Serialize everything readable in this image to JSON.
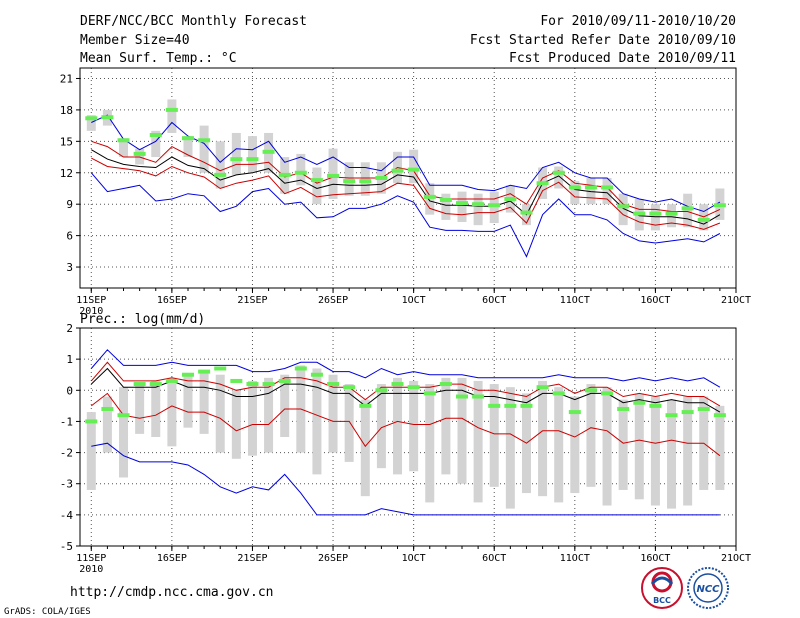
{
  "header": {
    "left": [
      "DERF/NCC/BCC Monthly Forecast",
      "Member Size=40",
      "Mean Surf. Temp.: °C"
    ],
    "right": [
      "For 2010/09/11-2010/10/20",
      "Fcst Started Refer Date 2010/09/10",
      "Fcst Produced Date 2010/09/11"
    ]
  },
  "chart_data": [
    {
      "type": "line",
      "title": "Mean Surf. Temp.: °C",
      "xlabel": "",
      "ylabel": "Mean Surf. Temp. (°C)",
      "ylim": [
        1,
        22
      ],
      "yticks": [
        3,
        6,
        9,
        12,
        15,
        18,
        21
      ],
      "x": [
        1,
        2,
        3,
        4,
        5,
        6,
        7,
        8,
        9,
        10,
        11,
        12,
        13,
        14,
        15,
        16,
        17,
        18,
        19,
        20,
        21,
        22,
        23,
        24,
        25,
        26,
        27,
        28,
        29,
        30,
        31,
        32,
        33,
        34,
        35,
        36,
        37,
        38,
        39,
        40
      ],
      "xticks": [
        {
          "x": 1,
          "label": "11SEP"
        },
        {
          "x": 6,
          "label": "16SEP"
        },
        {
          "x": 11,
          "label": "21SEP"
        },
        {
          "x": 16,
          "label": "26SEP"
        },
        {
          "x": 21,
          "label": "1OCT"
        },
        {
          "x": 26,
          "label": "6OCT"
        },
        {
          "x": 31,
          "label": "11OCT"
        },
        {
          "x": 36,
          "label": "16OCT"
        },
        {
          "x": 41,
          "label": "21OCT"
        }
      ],
      "xtick_sub": "2010",
      "grid": true,
      "series": [
        {
          "name": "max",
          "color": "#0000dd",
          "values": [
            16.8,
            17.5,
            15.2,
            14.2,
            15.0,
            16.8,
            15.5,
            14.8,
            13.0,
            14.3,
            14.2,
            15.0,
            13.0,
            13.5,
            12.8,
            13.5,
            12.5,
            12.5,
            12.2,
            13.5,
            13.5,
            10.8,
            10.8,
            10.8,
            10.4,
            10.3,
            10.8,
            10.5,
            12.5,
            13.0,
            12.0,
            11.5,
            11.5,
            10.0,
            9.5,
            9.2,
            9.5,
            8.8,
            8.3,
            9.2
          ]
        },
        {
          "name": "upper",
          "color": "#cc0000",
          "values": [
            15.0,
            14.5,
            13.5,
            13.5,
            13.0,
            14.5,
            13.7,
            13.0,
            12.2,
            12.8,
            12.8,
            13.0,
            11.6,
            12.0,
            11.0,
            11.6,
            11.5,
            11.5,
            11.5,
            12.5,
            12.2,
            9.8,
            9.5,
            9.5,
            9.5,
            9.5,
            10.0,
            9.0,
            11.5,
            12.2,
            11.0,
            10.8,
            10.6,
            9.0,
            8.5,
            8.5,
            8.3,
            8.3,
            7.8,
            8.5
          ]
        },
        {
          "name": "mean",
          "color": "#000000",
          "values": [
            14.2,
            13.3,
            12.8,
            12.6,
            12.5,
            13.5,
            12.7,
            12.4,
            11.3,
            11.8,
            12.0,
            12.4,
            11.0,
            11.3,
            10.5,
            10.9,
            10.8,
            10.8,
            10.9,
            11.8,
            11.6,
            9.3,
            8.9,
            8.9,
            8.8,
            8.8,
            9.3,
            8.0,
            11.0,
            11.7,
            10.4,
            10.2,
            10.1,
            8.6,
            7.9,
            7.8,
            7.8,
            7.6,
            7.1,
            8.0
          ]
        },
        {
          "name": "lower",
          "color": "#cc0000",
          "values": [
            13.4,
            12.6,
            12.4,
            12.2,
            11.7,
            12.6,
            12.0,
            11.6,
            10.5,
            11.0,
            11.3,
            11.7,
            10.0,
            10.6,
            9.7,
            9.9,
            10.0,
            10.1,
            10.2,
            11.0,
            10.8,
            8.6,
            8.1,
            8.0,
            8.2,
            8.2,
            8.7,
            7.2,
            10.3,
            11.1,
            9.7,
            9.6,
            9.5,
            8.0,
            7.3,
            7.0,
            7.2,
            7.0,
            6.6,
            7.2
          ]
        },
        {
          "name": "min",
          "color": "#0000dd",
          "values": [
            12.0,
            10.2,
            10.5,
            10.8,
            9.3,
            9.5,
            10.0,
            9.8,
            8.3,
            8.8,
            10.2,
            10.5,
            9.0,
            9.2,
            7.7,
            7.8,
            8.6,
            8.6,
            9.0,
            9.8,
            9.2,
            6.8,
            6.5,
            6.5,
            6.4,
            6.4,
            7.0,
            4.0,
            8.0,
            9.5,
            8.0,
            8.0,
            7.5,
            6.2,
            5.5,
            5.3,
            5.5,
            5.7,
            5.4,
            6.2
          ]
        }
      ],
      "boxes": {
        "color": "#d3d3d3",
        "low": [
          16.0,
          16.5,
          13.5,
          12.8,
          13.5,
          15.8,
          13.5,
          12.0,
          10.5,
          11.8,
          12.0,
          12.0,
          10.0,
          10.8,
          9.0,
          9.5,
          9.8,
          9.8,
          10.0,
          11.0,
          11.0,
          8.0,
          7.5,
          7.3,
          7.0,
          7.2,
          8.2,
          7.0,
          9.5,
          10.5,
          9.0,
          9.0,
          9.0,
          7.0,
          6.5,
          6.5,
          6.8,
          6.8,
          6.5,
          7.5
        ],
        "high": [
          17.5,
          18.0,
          15.3,
          14.3,
          16.0,
          19.0,
          15.5,
          16.5,
          15.0,
          15.8,
          15.5,
          15.8,
          13.5,
          13.8,
          12.5,
          14.3,
          13.0,
          13.0,
          13.0,
          14.0,
          14.2,
          11.0,
          10.0,
          10.2,
          10.0,
          10.2,
          10.8,
          9.0,
          12.5,
          12.6,
          11.2,
          11.5,
          11.5,
          10.0,
          9.5,
          9.0,
          9.0,
          10.0,
          9.0,
          10.5
        ]
      },
      "observed": {
        "color": "#66ee55",
        "values": [
          17.2,
          17.3,
          15.1,
          13.8,
          15.6,
          18.0,
          15.3,
          15.1,
          11.8,
          13.3,
          13.3,
          14.0,
          11.8,
          12.0,
          11.3,
          11.7,
          11.2,
          11.2,
          11.5,
          12.2,
          12.3,
          9.7,
          9.4,
          9.1,
          9.0,
          8.9,
          9.5,
          8.2,
          11.0,
          12.0,
          10.6,
          10.6,
          10.6,
          8.8,
          8.1,
          8.1,
          8.1,
          8.6,
          7.5,
          8.9
        ]
      }
    },
    {
      "type": "line",
      "title": "Prec.: log(mm/d)",
      "xlabel": "",
      "ylabel": "Prec. log(mm/d)",
      "ylim": [
        -5,
        2
      ],
      "yticks": [
        -5,
        -4,
        -3,
        -2,
        -1,
        0,
        1,
        2
      ],
      "x": [
        1,
        2,
        3,
        4,
        5,
        6,
        7,
        8,
        9,
        10,
        11,
        12,
        13,
        14,
        15,
        16,
        17,
        18,
        19,
        20,
        21,
        22,
        23,
        24,
        25,
        26,
        27,
        28,
        29,
        30,
        31,
        32,
        33,
        34,
        35,
        36,
        37,
        38,
        39,
        40
      ],
      "xticks": [
        {
          "x": 1,
          "label": "11SEP"
        },
        {
          "x": 6,
          "label": "16SEP"
        },
        {
          "x": 11,
          "label": "21SEP"
        },
        {
          "x": 16,
          "label": "26SEP"
        },
        {
          "x": 21,
          "label": "1OCT"
        },
        {
          "x": 26,
          "label": "6OCT"
        },
        {
          "x": 31,
          "label": "11OCT"
        },
        {
          "x": 36,
          "label": "16OCT"
        },
        {
          "x": 41,
          "label": "21OCT"
        }
      ],
      "xtick_sub": "2010",
      "grid": true,
      "series": [
        {
          "name": "max",
          "color": "#0000dd",
          "values": [
            0.7,
            1.3,
            0.8,
            0.8,
            0.8,
            0.9,
            0.8,
            0.8,
            0.8,
            0.8,
            0.6,
            0.6,
            0.7,
            0.9,
            0.9,
            0.6,
            0.6,
            0.4,
            0.7,
            0.5,
            0.6,
            0.5,
            0.5,
            0.5,
            0.4,
            0.4,
            0.4,
            0.4,
            0.4,
            0.5,
            0.4,
            0.4,
            0.4,
            0.3,
            0.4,
            0.3,
            0.4,
            0.3,
            0.4,
            0.1
          ]
        },
        {
          "name": "upper",
          "color": "#cc0000",
          "values": [
            0.3,
            0.9,
            0.3,
            0.3,
            0.3,
            0.4,
            0.3,
            0.3,
            0.2,
            0.0,
            0.1,
            0.1,
            0.4,
            0.4,
            0.3,
            0.1,
            0.1,
            -0.3,
            0.1,
            0.1,
            0.1,
            0.1,
            0.2,
            0.2,
            0.0,
            0.0,
            -0.1,
            -0.2,
            0.1,
            0.2,
            -0.1,
            0.1,
            0.1,
            -0.2,
            -0.1,
            -0.2,
            -0.1,
            -0.2,
            -0.2,
            -0.5
          ]
        },
        {
          "name": "mean",
          "color": "#000000",
          "values": [
            0.2,
            0.7,
            0.1,
            0.1,
            0.1,
            0.3,
            0.1,
            0.1,
            0.0,
            -0.2,
            -0.2,
            -0.1,
            0.2,
            0.2,
            0.1,
            -0.1,
            -0.1,
            -0.5,
            -0.1,
            -0.1,
            -0.1,
            -0.1,
            0.0,
            0.0,
            -0.2,
            -0.2,
            -0.3,
            -0.4,
            -0.1,
            -0.1,
            -0.3,
            -0.1,
            -0.1,
            -0.4,
            -0.3,
            -0.4,
            -0.3,
            -0.4,
            -0.4,
            -0.7
          ]
        },
        {
          "name": "lower",
          "color": "#cc0000",
          "values": [
            -0.5,
            -0.1,
            -0.8,
            -0.9,
            -0.8,
            -0.5,
            -0.7,
            -0.7,
            -0.9,
            -1.3,
            -1.1,
            -1.1,
            -0.6,
            -0.6,
            -0.8,
            -1.0,
            -1.0,
            -1.8,
            -1.2,
            -1.0,
            -1.1,
            -1.1,
            -0.9,
            -0.9,
            -1.2,
            -1.4,
            -1.4,
            -1.7,
            -1.3,
            -1.3,
            -1.5,
            -1.2,
            -1.3,
            -1.7,
            -1.6,
            -1.7,
            -1.6,
            -1.7,
            -1.7,
            -2.1
          ]
        },
        {
          "name": "min",
          "color": "#0000dd",
          "values": [
            -1.8,
            -1.7,
            -2.1,
            -2.3,
            -2.3,
            -2.3,
            -2.4,
            -2.7,
            -3.1,
            -3.3,
            -3.1,
            -3.2,
            -2.7,
            -3.3,
            -4.0,
            -4.0,
            -4.0,
            -4.0,
            -3.8,
            -3.9,
            -4.0,
            -4.0,
            -4.0,
            -4.0,
            -4.0,
            -4.0,
            -4.0,
            -4.0,
            -4.0,
            -4.0,
            -4.0,
            -4.0,
            -4.0,
            -4.0,
            -4.0,
            -4.0,
            -4.0,
            -4.0,
            -4.0,
            -4.0
          ]
        }
      ],
      "boxes": {
        "color": "#d3d3d3",
        "low": [
          -3.2,
          -2.0,
          -2.8,
          -1.4,
          -1.5,
          -1.8,
          -1.2,
          -1.4,
          -2.0,
          -2.2,
          -2.1,
          -2.0,
          -1.5,
          -2.0,
          -2.7,
          -2.0,
          -2.3,
          -3.4,
          -2.5,
          -2.7,
          -2.6,
          -3.6,
          -2.7,
          -3.0,
          -3.6,
          -3.1,
          -3.8,
          -3.3,
          -3.4,
          -3.6,
          -3.3,
          -3.1,
          -3.7,
          -3.2,
          -3.5,
          -3.7,
          -3.8,
          -3.7,
          -3.2,
          -3.2
        ],
        "high": [
          -0.7,
          -0.2,
          0.1,
          0.2,
          0.3,
          0.4,
          0.5,
          0.6,
          0.5,
          0.0,
          0.3,
          0.4,
          0.5,
          0.8,
          0.7,
          0.5,
          0.2,
          -0.3,
          0.2,
          0.4,
          0.3,
          0.2,
          0.4,
          0.4,
          0.3,
          0.2,
          0.1,
          -0.1,
          0.3,
          0.1,
          -0.2,
          0.2,
          0.1,
          -0.3,
          -0.1,
          -0.2,
          -0.3,
          -0.2,
          -0.2,
          -0.5
        ]
      },
      "observed": {
        "color": "#66ee55",
        "values": [
          -1.0,
          -0.6,
          -0.8,
          0.2,
          0.2,
          0.3,
          0.5,
          0.6,
          0.7,
          0.3,
          0.2,
          0.2,
          0.3,
          0.7,
          0.5,
          0.2,
          0.1,
          -0.5,
          0.0,
          0.2,
          0.1,
          -0.1,
          0.2,
          -0.2,
          -0.2,
          -0.5,
          -0.5,
          -0.5,
          0.1,
          -0.1,
          -0.7,
          0.0,
          -0.1,
          -0.6,
          -0.4,
          -0.5,
          -0.8,
          -0.7,
          -0.6,
          -0.8
        ]
      }
    }
  ],
  "footer": {
    "url": "http://cmdp.ncc.cma.gov.cn",
    "credit": "GrADS: COLA/IGES",
    "logo_bcc": "BCC",
    "logo_ncc": "NCC"
  }
}
